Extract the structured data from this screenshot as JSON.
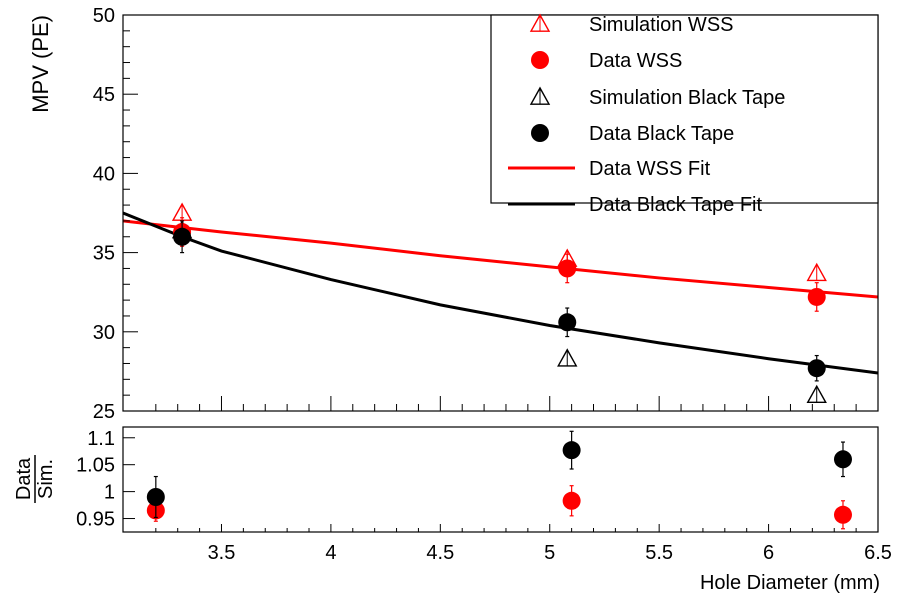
{
  "chart_data": [
    {
      "type": "scatter",
      "ylabel": "MPV (PE)",
      "xlim": [
        3.05,
        6.5
      ],
      "ylim": [
        25,
        50
      ],
      "yticks": [
        "25",
        "30",
        "35",
        "40",
        "45",
        "50"
      ],
      "legend_position": "top-right",
      "series": [
        {
          "name": "Simulation WSS",
          "marker": "open-triangle",
          "color": "#ff0000",
          "points": [
            {
              "x": 3.32,
              "y": 37.5
            },
            {
              "x": 5.08,
              "y": 34.6
            },
            {
              "x": 6.22,
              "y": 33.7
            }
          ]
        },
        {
          "name": "Data WSS",
          "marker": "filled-circle",
          "color": "#ff0000",
          "points": [
            {
              "x": 3.32,
              "y": 36.3,
              "err": 0.9
            },
            {
              "x": 5.08,
              "y": 34.0,
              "err": 0.9
            },
            {
              "x": 6.22,
              "y": 32.2,
              "err": 0.9
            }
          ]
        },
        {
          "name": "Simulation Black Tape",
          "marker": "open-triangle",
          "color": "#000000",
          "points": [
            {
              "x": 3.32,
              "y": 36.4
            },
            {
              "x": 5.08,
              "y": 28.3
            },
            {
              "x": 6.22,
              "y": 26.0
            }
          ]
        },
        {
          "name": "Data Black Tape",
          "marker": "filled-circle",
          "color": "#000000",
          "points": [
            {
              "x": 3.32,
              "y": 36.0,
              "err": 1.0
            },
            {
              "x": 5.08,
              "y": 30.6,
              "err": 0.9
            },
            {
              "x": 6.22,
              "y": 27.7,
              "err": 0.8
            }
          ]
        },
        {
          "name": "Data WSS Fit",
          "marker": "line",
          "color": "#ff0000",
          "points": [
            {
              "x": 3.05,
              "y": 37.0
            },
            {
              "x": 3.5,
              "y": 36.3
            },
            {
              "x": 4.0,
              "y": 35.6
            },
            {
              "x": 4.5,
              "y": 34.8
            },
            {
              "x": 5.0,
              "y": 34.1
            },
            {
              "x": 5.5,
              "y": 33.4
            },
            {
              "x": 6.0,
              "y": 32.8
            },
            {
              "x": 6.5,
              "y": 32.2
            }
          ]
        },
        {
          "name": "Data Black Tape Fit",
          "marker": "line",
          "color": "#000000",
          "points": [
            {
              "x": 3.05,
              "y": 37.5
            },
            {
              "x": 3.32,
              "y": 36.0
            },
            {
              "x": 3.5,
              "y": 35.1
            },
            {
              "x": 4.0,
              "y": 33.3
            },
            {
              "x": 4.5,
              "y": 31.7
            },
            {
              "x": 5.0,
              "y": 30.4
            },
            {
              "x": 5.5,
              "y": 29.3
            },
            {
              "x": 6.0,
              "y": 28.3
            },
            {
              "x": 6.5,
              "y": 27.4
            }
          ]
        }
      ]
    },
    {
      "type": "scatter",
      "ylabel_num": "Data",
      "ylabel_den": "Sim.",
      "xlabel": "Hole Diameter (mm)",
      "xlim": [
        3.05,
        6.5
      ],
      "ylim": [
        0.925,
        1.12
      ],
      "xticks": [
        "3.5",
        "4",
        "4.5",
        "5",
        "5.5",
        "6",
        "6.5"
      ],
      "yticks": [
        "0.95",
        "1",
        "1.05",
        "1.1"
      ],
      "series": [
        {
          "name": "WSS",
          "color": "#ff0000",
          "points": [
            {
              "x": 3.2,
              "y": 0.965,
              "err": 0.02
            },
            {
              "x": 5.1,
              "y": 0.983,
              "err": 0.028
            },
            {
              "x": 6.34,
              "y": 0.957,
              "err": 0.026
            }
          ]
        },
        {
          "name": "Black Tape",
          "color": "#000000",
          "points": [
            {
              "x": 3.2,
              "y": 0.99,
              "err": 0.038
            },
            {
              "x": 5.1,
              "y": 1.077,
              "err": 0.035
            },
            {
              "x": 6.34,
              "y": 1.06,
              "err": 0.032
            }
          ]
        }
      ]
    }
  ]
}
